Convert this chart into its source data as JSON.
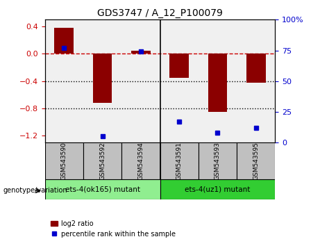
{
  "title": "GDS3747 / A_12_P100079",
  "samples": [
    "GSM543590",
    "GSM543592",
    "GSM543594",
    "GSM543591",
    "GSM543593",
    "GSM543595"
  ],
  "log2_ratio": [
    0.38,
    -0.72,
    0.05,
    -0.35,
    -0.85,
    -0.42
  ],
  "percentile_rank": [
    77,
    5,
    74,
    17,
    8,
    12
  ],
  "groups": [
    {
      "label": "ets-4(ok165) mutant",
      "samples": [
        0,
        1,
        2
      ],
      "color": "#90ee90"
    },
    {
      "label": "ets-4(uz1) mutant",
      "samples": [
        3,
        4,
        5
      ],
      "color": "#32cd32"
    }
  ],
  "ylim_left": [
    -1.3,
    0.5
  ],
  "ylim_right": [
    0,
    100
  ],
  "bar_color": "#8b0000",
  "dot_color": "#0000cd",
  "plot_bg_color": "#f0f0f0",
  "label_bg_color": "#c0c0c0",
  "hline_color": "#cc0000",
  "dotted_line_color": "#000000",
  "left_yticks": [
    0.4,
    0.0,
    -0.4,
    -0.8,
    -1.2
  ],
  "right_ytick_vals": [
    100,
    75,
    50,
    25,
    0
  ],
  "right_ytick_labels": [
    "100%",
    "75",
    "50",
    "25",
    "0"
  ]
}
